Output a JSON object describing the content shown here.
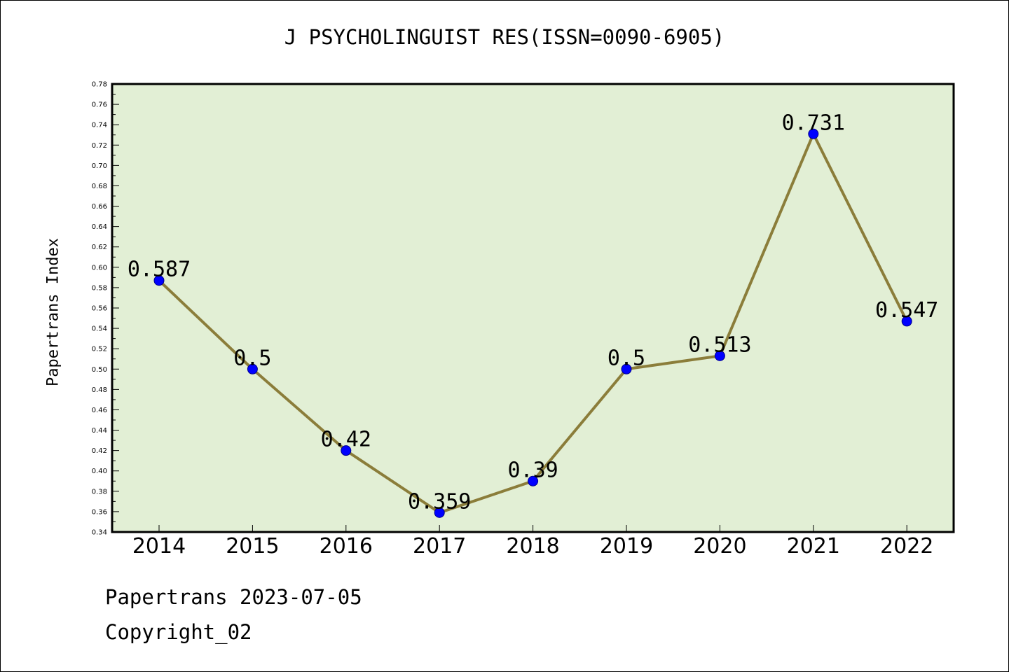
{
  "title": "J PSYCHOLINGUIST RES(ISSN=0090-6905)",
  "ylabel": "Papertrans Index",
  "footer": {
    "line1": "Papertrans 2023-07-05",
    "line2": "Copyright_02"
  },
  "colors": {
    "plot_background": "#e2efd5",
    "line": "#8b7d3a",
    "marker": "#0000ff"
  },
  "chart_data": {
    "type": "line",
    "title": "J PSYCHOLINGUIST RES(ISSN=0090-6905)",
    "xlabel": "",
    "ylabel": "Papertrans Index",
    "categories": [
      "2014",
      "2015",
      "2016",
      "2017",
      "2018",
      "2019",
      "2020",
      "2021",
      "2022"
    ],
    "values": [
      0.587,
      0.5,
      0.42,
      0.359,
      0.39,
      0.5,
      0.513,
      0.731,
      0.547
    ],
    "value_labels": [
      "0.587",
      "0.5",
      "0.42",
      "0.359",
      "0.39",
      "0.5",
      "0.513",
      "0.731",
      "0.547"
    ],
    "ylim": [
      0.34,
      0.78
    ],
    "yticks": [
      "0.34",
      "0.36",
      "0.38",
      "0.40",
      "0.42",
      "0.44",
      "0.46",
      "0.48",
      "0.50",
      "0.52",
      "0.54",
      "0.56",
      "0.58",
      "0.60",
      "0.62",
      "0.64",
      "0.66",
      "0.68",
      "0.70",
      "0.72",
      "0.74",
      "0.76",
      "0.78"
    ],
    "grid": false,
    "legend": "none"
  }
}
